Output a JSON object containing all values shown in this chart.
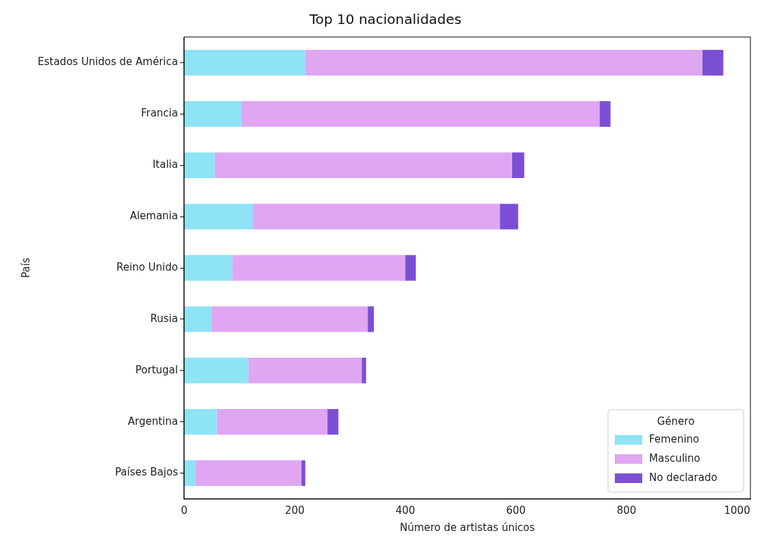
{
  "chart_data": {
    "type": "bar",
    "orientation": "horizontal",
    "stacked": true,
    "title": "Top 10 nacionalidades",
    "xlabel": "Número de artistas únicos",
    "ylabel": "País",
    "legend_title": "Género",
    "legend": "bottom right",
    "grid": false,
    "categories": [
      "Estados Unidos de América",
      "Francia",
      "Italia",
      "Alemania",
      "Reino Unido",
      "Rusia",
      "Portugal",
      "Argentina",
      "Países Bajos"
    ],
    "xlim": [
      0,
      1024
    ],
    "xticks": [
      0,
      200,
      400,
      600,
      800,
      1000
    ],
    "series": [
      {
        "name": "Femenino",
        "color": "#8ee3f5",
        "values": [
          219,
          104,
          55,
          124,
          87,
          49,
          116,
          59,
          21
        ]
      },
      {
        "name": "Masculino",
        "color": "#dfa6f2",
        "values": [
          718,
          647,
          538,
          447,
          313,
          283,
          205,
          200,
          191
        ]
      },
      {
        "name": "No declarado",
        "color": "#7b4fd4",
        "values": [
          38,
          20,
          22,
          33,
          19,
          11,
          8,
          20,
          7
        ]
      }
    ]
  }
}
